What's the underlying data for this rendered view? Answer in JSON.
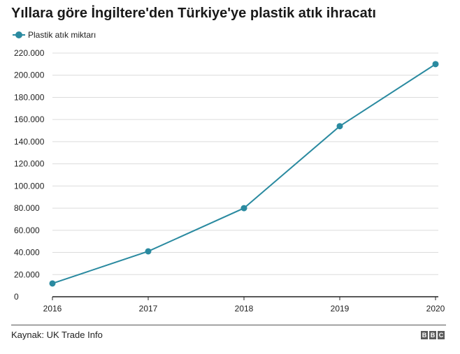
{
  "header": {
    "title": "Yıllara göre İngiltere'den Türkiye'ye plastik atık ihracatı"
  },
  "legend": {
    "label": "Plastik atık miktarı"
  },
  "footer": {
    "source": "Kaynak: UK Trade Info",
    "logo_letters": [
      "B",
      "B",
      "C"
    ]
  },
  "colors": {
    "series": "#2a8aa0",
    "grid": "#dcdcdc",
    "axis": "#222222"
  },
  "chart_data": {
    "type": "line",
    "title": "Yıllara göre İngiltere'den Türkiye'ye plastik atık ihracatı",
    "xlabel": "",
    "ylabel": "",
    "x": [
      "2016",
      "2017",
      "2018",
      "2019",
      "2020"
    ],
    "series": [
      {
        "name": "Plastik atık miktarı",
        "values": [
          12000,
          41000,
          80000,
          154000,
          210000
        ]
      }
    ],
    "ylim": [
      0,
      220000
    ],
    "yticks": [
      0,
      20000,
      40000,
      60000,
      80000,
      100000,
      120000,
      140000,
      160000,
      180000,
      200000,
      220000
    ],
    "ytick_labels": [
      "0",
      "20.000",
      "40.000",
      "60.000",
      "80.000",
      "100.000",
      "120.000",
      "140.000",
      "160.000",
      "180.000",
      "200.000",
      "220.000"
    ],
    "grid": true,
    "legend_position": "top-left"
  }
}
